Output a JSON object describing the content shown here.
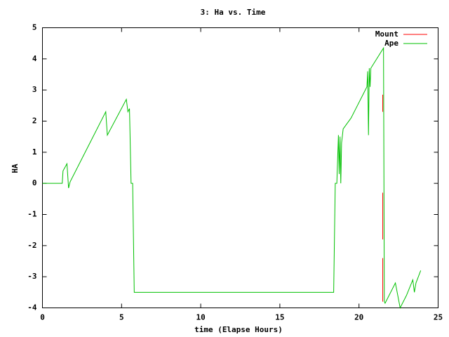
{
  "chart_data": {
    "type": "line",
    "title": "3: Ha vs. Time",
    "x_label": "time (Elapse Hours)",
    "y_label": "HA",
    "xlim": [
      0,
      25
    ],
    "xticks": [
      0,
      5,
      10,
      15,
      20,
      25
    ],
    "ylim": [
      -4,
      5
    ],
    "yticks": [
      -4,
      -3,
      -2,
      -1,
      0,
      1,
      2,
      3,
      4,
      5
    ],
    "grid": false,
    "legend": "top-right",
    "series": [
      {
        "name": "Mount",
        "color": "#ff0000",
        "x": [
          21.5,
          21.5,
          21.5,
          21.5,
          21.5,
          21.5,
          21.5,
          21.5
        ],
        "values": [
          2.85,
          2.3,
          null,
          -0.3,
          -1.8,
          null,
          -2.4,
          -3.8
        ]
      },
      {
        "name": "Ape",
        "color": "#00c000",
        "x": [
          0,
          1.25,
          1.3,
          1.55,
          1.65,
          1.75,
          4.0,
          4.1,
          5.3,
          5.4,
          5.5,
          5.6,
          5.7,
          5.8,
          18.4,
          18.5,
          18.6,
          18.7,
          18.75,
          18.8,
          18.85,
          18.9,
          19.0,
          19.5,
          20.2,
          20.5,
          20.55,
          20.6,
          20.65,
          20.7,
          20.75,
          21.55,
          21.6,
          21.65,
          22.3,
          22.6,
          23.0,
          23.4,
          23.5,
          23.6,
          23.9
        ],
        "values": [
          0,
          0,
          0.4,
          0.63,
          -0.15,
          0.05,
          2.3,
          1.55,
          2.7,
          2.3,
          2.4,
          0,
          0,
          -3.5,
          -3.5,
          0,
          0,
          1.55,
          0.3,
          1.5,
          0,
          1.3,
          1.75,
          2.1,
          2.8,
          3.1,
          3.6,
          1.55,
          3.7,
          3.1,
          3.7,
          4.35,
          -3.8,
          -3.85,
          -3.2,
          -4.0,
          -3.6,
          -3.1,
          -3.5,
          -3.2,
          -2.8
        ]
      }
    ]
  }
}
